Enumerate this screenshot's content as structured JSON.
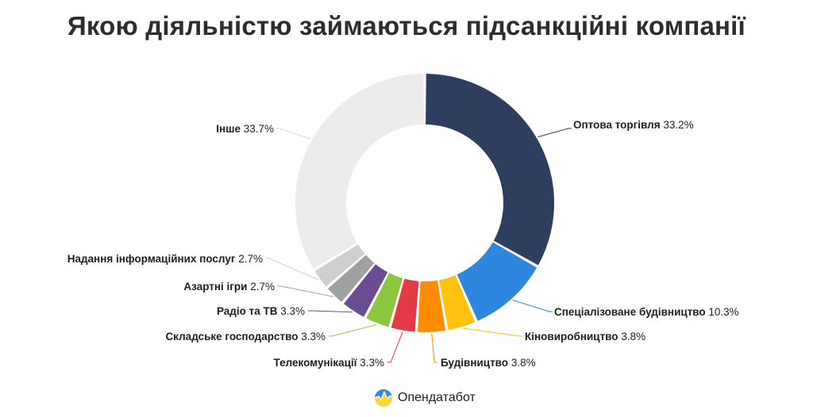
{
  "title": "Якою діяльністю займаються підсанкційні компанії",
  "brand": {
    "name": "Опендатабот",
    "logo_icon": "opendatabot-logo-icon"
  },
  "chart_data": {
    "type": "pie",
    "style": "donut",
    "unit": "%",
    "slices": [
      {
        "label": "Оптова торгівля",
        "value": 33.2,
        "value_label": "33.2%",
        "color": "#2e3e5e"
      },
      {
        "label": "Спеціалізоване будівництво",
        "value": 10.3,
        "value_label": "10.3%",
        "color": "#2f86de"
      },
      {
        "label": "Кіновиробництво",
        "value": 3.8,
        "value_label": "3.8%",
        "color": "#ffc20e"
      },
      {
        "label": "Будівництво",
        "value": 3.8,
        "value_label": "3.8%",
        "color": "#ff8c00"
      },
      {
        "label": "Телекомунікації",
        "value": 3.3,
        "value_label": "3.3%",
        "color": "#e63946"
      },
      {
        "label": "Складське господарство",
        "value": 3.3,
        "value_label": "3.3%",
        "color": "#8dc63f"
      },
      {
        "label": "Радіо та ТВ",
        "value": 3.3,
        "value_label": "3.3%",
        "color": "#6a4c93"
      },
      {
        "label": "Азартні ігри",
        "value": 2.7,
        "value_label": "2.7%",
        "color": "#a0a0a0"
      },
      {
        "label": "Надання інформаційних послуг",
        "value": 2.7,
        "value_label": "2.7%",
        "color": "#cfcfcf"
      },
      {
        "label": "Інше",
        "value": 33.7,
        "value_label": "33.7%",
        "color": "#ececec"
      }
    ]
  }
}
